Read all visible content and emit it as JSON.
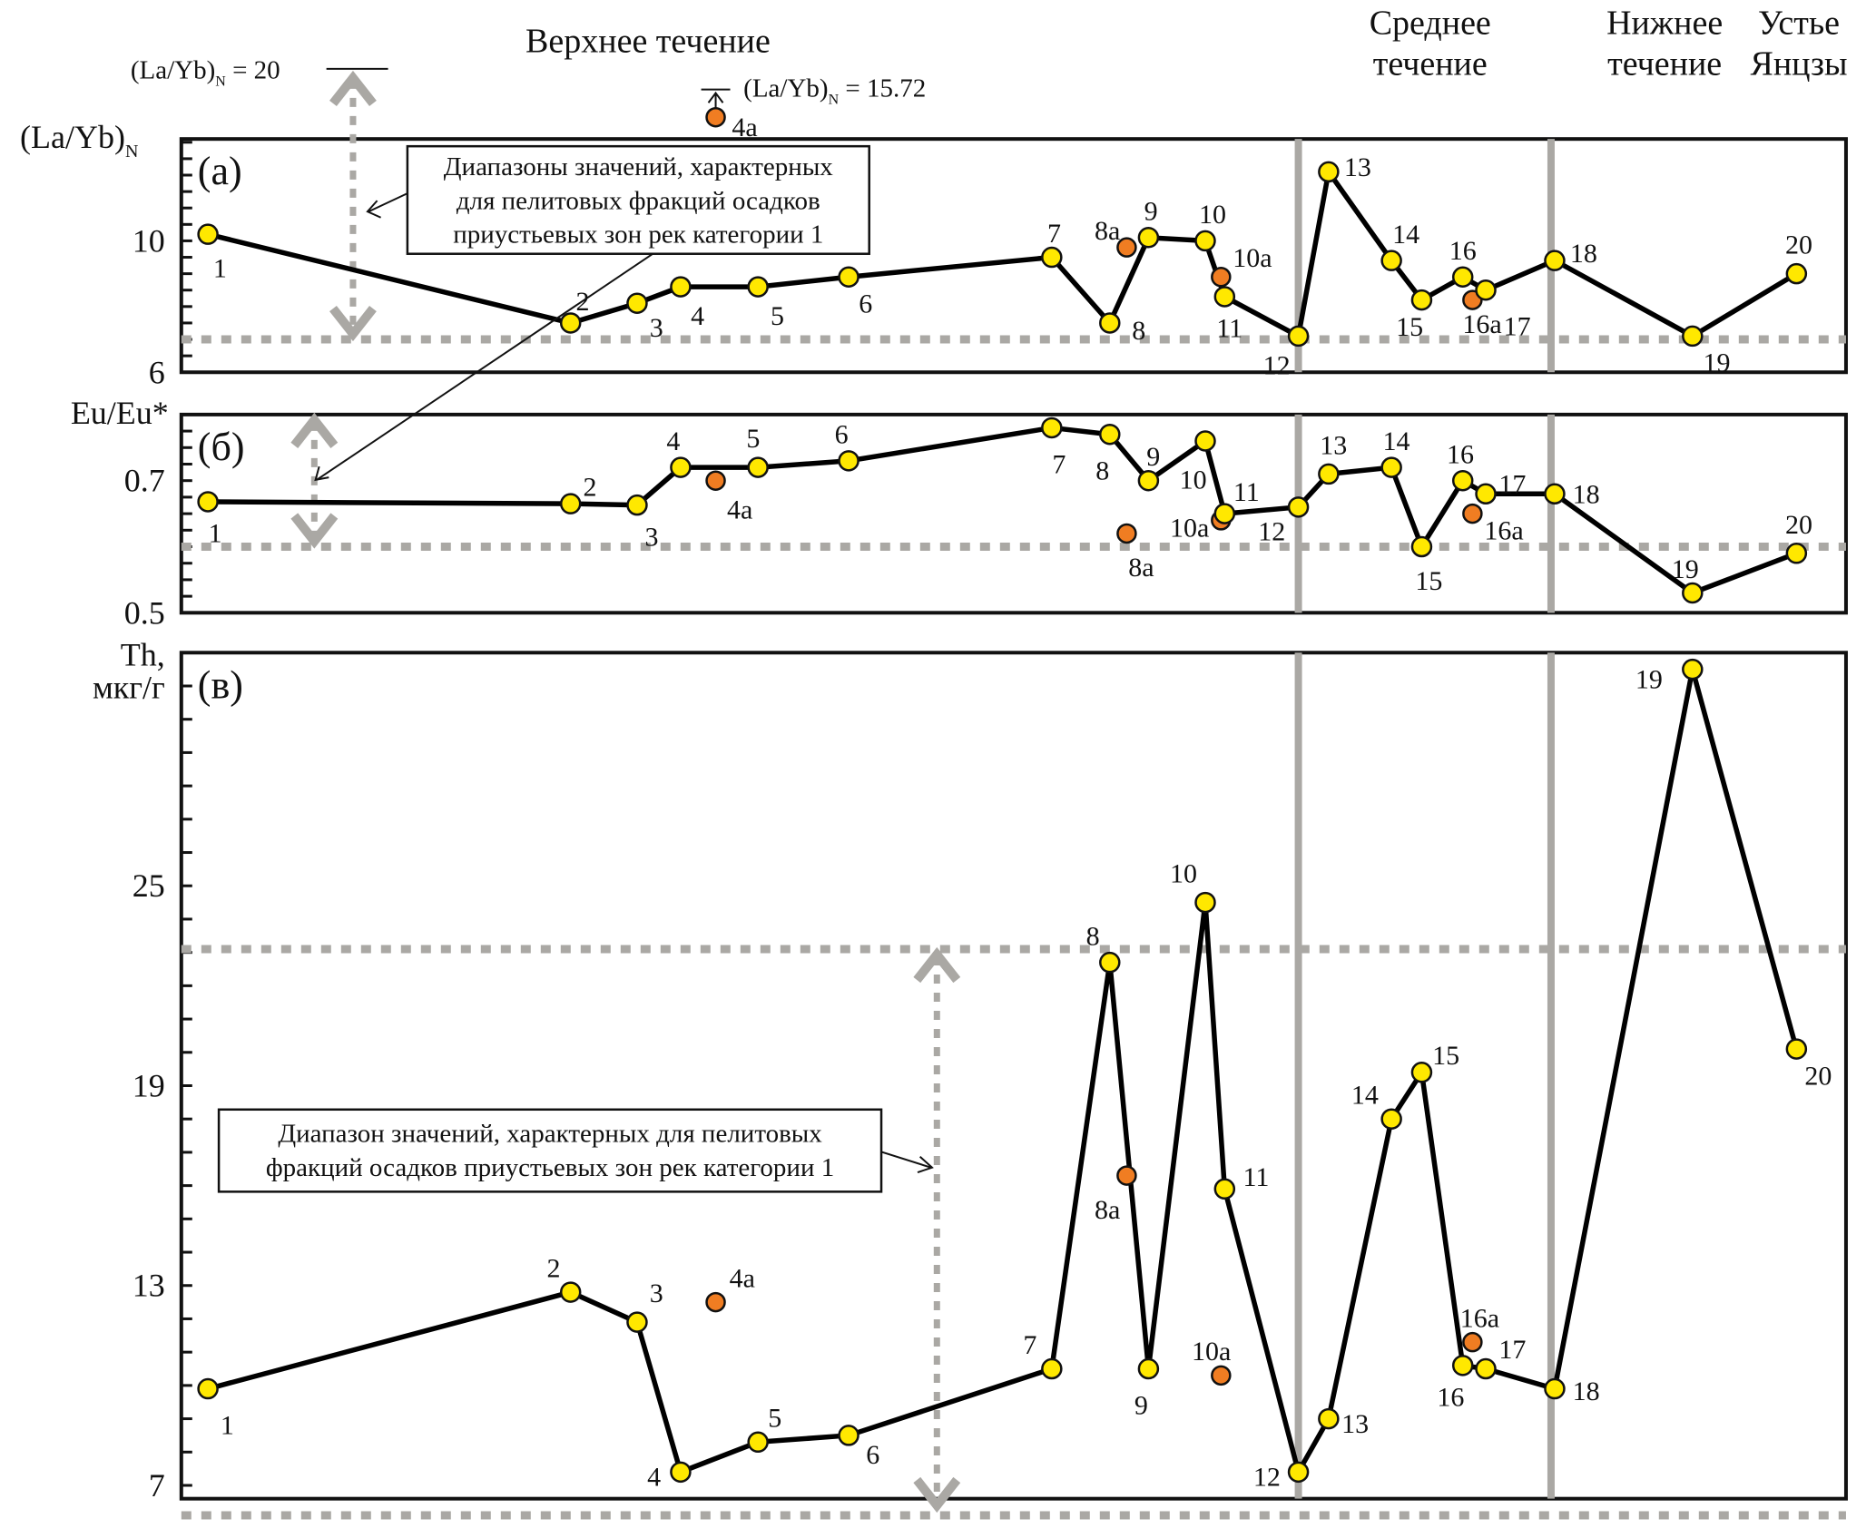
{
  "section_headers": [
    {
      "lines": [
        "Верхнее течение"
      ]
    },
    {
      "lines": [
        "Среднее",
        "течение"
      ]
    },
    {
      "lines": [
        "Нижнее",
        "течение"
      ]
    },
    {
      "lines": [
        "Устье",
        "Янцзы"
      ]
    }
  ],
  "colors": {
    "main_marker": "#ffe800",
    "extra_marker": "#f07d22",
    "reference_line": "#aaa8a4",
    "series_line": "#000000"
  },
  "annotations": {
    "lab_yb_max_note": "(La/Yb)N = 20",
    "sample_4a_offscale_note": "(La/Yb)N = 15.72",
    "box_top_lines": [
      "Диапазоны значений, характерных",
      "для пелитовых фракций осадков",
      "приустьевых зон рек категории 1"
    ],
    "box_bottom_lines": [
      "Диапазон значений, характерных для пелитовых",
      "фракций осадков приустьевых зон рек категории 1"
    ]
  },
  "chart_data": [
    {
      "id": "a",
      "type": "line",
      "panel_label": "(а)",
      "ylabel": "(La/Yb)N",
      "yticks": [
        "10",
        "6"
      ],
      "ytick_values": [
        10,
        6
      ],
      "ylim": [
        6,
        13.1
      ],
      "minor_tick_step": 0.5,
      "reference_lines": [
        7
      ],
      "range_arrow": [
        7,
        20
      ],
      "main_series": {
        "labels": [
          "1",
          "2",
          "3",
          "4",
          "5",
          "6",
          "7",
          "8",
          "9",
          "10",
          "11",
          "12",
          "13",
          "14",
          "15",
          "16",
          "17",
          "18",
          "19",
          "20"
        ],
        "values": [
          10.2,
          7.5,
          8.1,
          8.6,
          8.6,
          8.9,
          9.5,
          7.5,
          10.1,
          10.0,
          8.3,
          7.1,
          12.1,
          9.4,
          8.2,
          8.9,
          8.5,
          9.4,
          7.1,
          9.0
        ]
      },
      "extra_points": [
        {
          "label": "4a",
          "value": 15.72,
          "offscale": true
        },
        {
          "label": "8a",
          "value": 9.8
        },
        {
          "label": "10a",
          "value": 8.9
        },
        {
          "label": "16a",
          "value": 8.2
        }
      ]
    },
    {
      "id": "b",
      "type": "line",
      "panel_label": "(б)",
      "ylabel": "Eu/Eu*",
      "yticks": [
        "0.7",
        "0.5"
      ],
      "ytick_values": [
        0.7,
        0.5
      ],
      "ylim": [
        0.5,
        0.8
      ],
      "minor_tick_step": 0.025,
      "reference_lines": [
        0.6
      ],
      "range_arrow": [
        0.6,
        0.8
      ],
      "main_series": {
        "labels": [
          "1",
          "2",
          "3",
          "4",
          "5",
          "6",
          "7",
          "8",
          "9",
          "10",
          "11",
          "12",
          "13",
          "14",
          "15",
          "16",
          "17",
          "18",
          "19",
          "20"
        ],
        "values": [
          0.668,
          0.665,
          0.663,
          0.72,
          0.72,
          0.73,
          0.78,
          0.77,
          0.7,
          0.76,
          0.65,
          0.66,
          0.71,
          0.72,
          0.6,
          0.7,
          0.68,
          0.68,
          0.53,
          0.59
        ]
      },
      "extra_points": [
        {
          "label": "4a",
          "value": 0.7
        },
        {
          "label": "8a",
          "value": 0.62
        },
        {
          "label": "10a",
          "value": 0.64
        },
        {
          "label": "16a",
          "value": 0.65
        }
      ]
    },
    {
      "id": "c",
      "type": "line",
      "panel_label": "(в)",
      "ylabel": "Th, мкг/г",
      "ylabel_lines": [
        "Th,",
        "мкг/г"
      ],
      "yticks": [
        "25",
        "19",
        "13",
        "7"
      ],
      "ytick_values": [
        25,
        19,
        13,
        7
      ],
      "ylim": [
        6.6,
        32
      ],
      "minor_tick_step": 1,
      "reference_lines": [
        23.1,
        6.1
      ],
      "range_arrow": [
        6.1,
        23.1
      ],
      "main_series": {
        "labels": [
          "1",
          "2",
          "3",
          "4",
          "5",
          "6",
          "7",
          "8",
          "9",
          "10",
          "11",
          "12",
          "13",
          "14",
          "15",
          "16",
          "17",
          "18",
          "19",
          "20"
        ],
        "values": [
          9.9,
          12.8,
          11.9,
          7.4,
          8.3,
          8.5,
          10.5,
          22.7,
          10.5,
          24.5,
          15.9,
          7.4,
          9.0,
          18.0,
          19.4,
          10.6,
          10.5,
          9.9,
          31.5,
          20.1
        ]
      },
      "extra_points": [
        {
          "label": "4a",
          "value": 12.5
        },
        {
          "label": "8a",
          "value": 16.3
        },
        {
          "label": "10a",
          "value": 10.3
        },
        {
          "label": "16a",
          "value": 11.3
        }
      ]
    }
  ]
}
